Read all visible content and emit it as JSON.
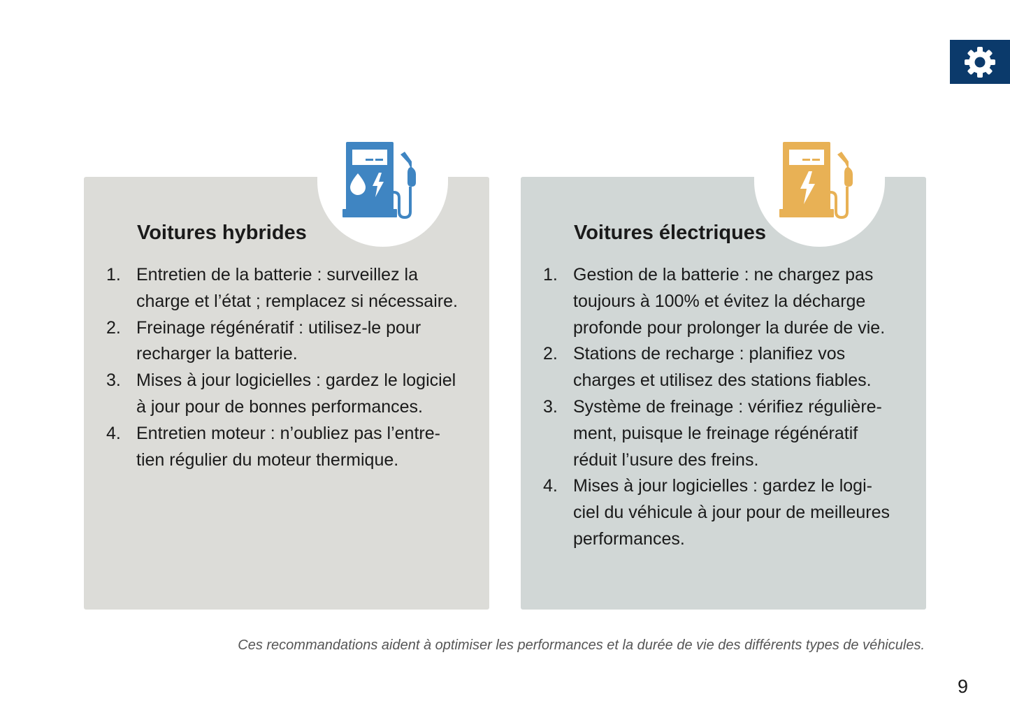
{
  "settings_icon": "gear-icon",
  "colors": {
    "hybrid_icon": "#3f85c2",
    "electric_icon": "#e8b155",
    "gear_box": "#0b3a6b"
  },
  "hybrid": {
    "title": "Voitures hybrides",
    "icon": "fuel-electric-pump-icon",
    "items": [
      {
        "num": "1.",
        "lines": [
          "Entretien de la batterie : surveillez la",
          "charge et l’état ; remplacez si nécessaire."
        ]
      },
      {
        "num": "2.",
        "lines": [
          "Freinage régénératif : utilisez-le pour",
          "recharger la batterie."
        ]
      },
      {
        "num": "3.",
        "lines": [
          "Mises à jour logicielles : gardez le logiciel",
          "à jour pour de bonnes performances."
        ]
      },
      {
        "num": "4.",
        "lines": [
          "Entretien moteur : n’oubliez pas l’entre-",
          "tien régulier du moteur thermique."
        ]
      }
    ]
  },
  "electric": {
    "title": "Voitures électriques",
    "icon": "electric-charging-station-icon",
    "items": [
      {
        "num": "1.",
        "lines": [
          "Gestion de la batterie : ne chargez pas",
          "toujours à 100% et évitez la décharge",
          "profonde pour prolonger la durée de vie."
        ]
      },
      {
        "num": "2.",
        "lines": [
          "Stations de recharge : planifiez vos",
          "charges et utilisez des stations fiables."
        ]
      },
      {
        "num": "3.",
        "lines": [
          "Système de freinage : vérifiez régulière-",
          "ment, puisque le freinage régénératif",
          "réduit l’usure des freins."
        ]
      },
      {
        "num": "4.",
        "lines": [
          "Mises à jour logicielles : gardez le logi-",
          "ciel du véhicule à jour pour de meilleures",
          "performances."
        ]
      }
    ]
  },
  "footer": "Ces recommandations aident à optimiser les performances et la durée de vie des différents types de véhicules.",
  "page_number": "9"
}
